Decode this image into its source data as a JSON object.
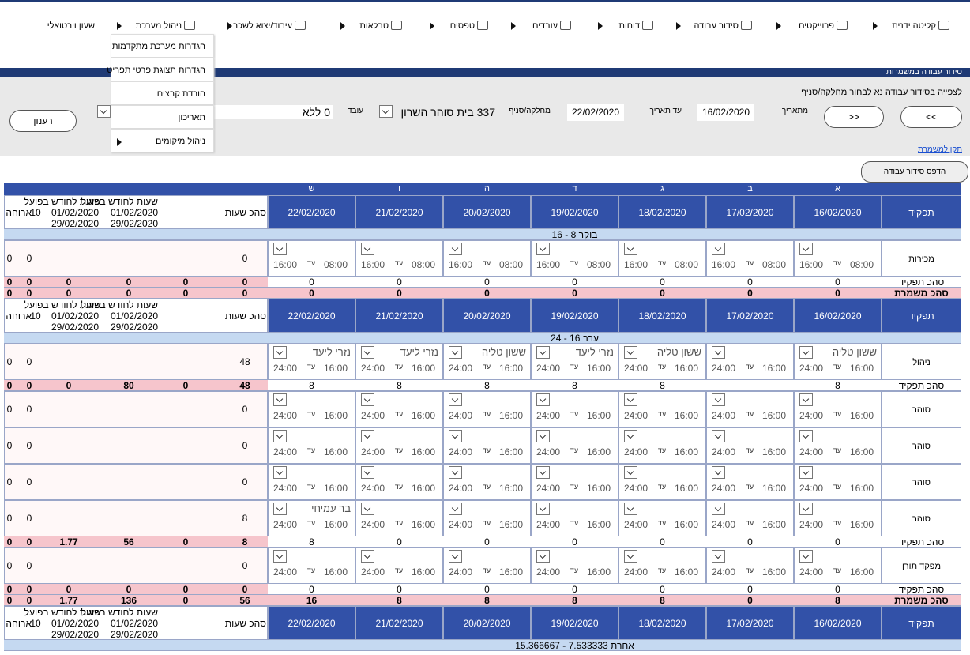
{
  "menu": {
    "items": [
      "קליטה ידנית",
      "פרוייקטים",
      "סידור עבודה",
      "דוחות",
      "עובדים",
      "טפסים",
      "טבלאות",
      "עיבוד/יצוא לשכר",
      "ניהול מערכת",
      "שעון וירטואלי"
    ],
    "dropdown": [
      "הגדרות מערכת מתקדמות",
      "הגדרות תצוגת פרטי תפריט",
      "הורדת קבצים",
      "תאריכון",
      "ניהול מיקומים"
    ]
  },
  "section_title": "סידור עבודה במשמרות",
  "filters": {
    "hint": "לצפייה בסידור עבודה נא לבחור מחלקה/סניף",
    "prev": "<<",
    "next": ">>",
    "from_label": "מתאריך",
    "from": "16/02/2020",
    "to_label": "עד תאריך",
    "to": "22/02/2020",
    "dept_label": "מחלקה/סניף",
    "dept": "337 בית סוהר השרון",
    "employee_label": "עובד",
    "employee": "0 ללא",
    "refresh": "רענון",
    "link": "תקן למשמרת",
    "print": "הדפס סידור עבודה"
  },
  "table": {
    "day_letters": [
      "א",
      "ב",
      "ג",
      "ד",
      "ה",
      "ו",
      "ש"
    ],
    "role_header": "תפקיד",
    "dates": [
      "16/02/2020",
      "17/02/2020",
      "18/02/2020",
      "19/02/2020",
      "20/02/2020",
      "21/02/2020",
      "22/02/2020"
    ],
    "summary_header": {
      "total_hours": "סהכ שעות",
      "monthly": "שעות לחודש בפועל",
      "month_start": "01/02/2020",
      "month_end": "29/02/2020",
      "meal": "ארוחה",
      "meal_value": "10"
    },
    "to_word": "עד",
    "role_total_label": "סהכ תפקיד",
    "shift_total_label": "סהכ משמרת",
    "shifts": [
      {
        "label": "בוקר 8 - 16",
        "from": "08:00",
        "to": "16:00",
        "groups": [
          {
            "rows": [
              {
                "name": "מכירות",
                "employees": [
                  null,
                  null,
                  null,
                  null,
                  null,
                  null,
                  null
                ],
                "hours": 0,
                "extra": [
                  0,
                  0
                ]
              }
            ],
            "total": {
              "days": [
                0,
                0,
                0,
                0,
                0,
                0,
                0
              ],
              "summary": [
                0,
                0,
                0,
                0,
                0,
                0
              ]
            }
          }
        ],
        "total": {
          "days": [
            0,
            0,
            0,
            0,
            0,
            0,
            0
          ],
          "summary": [
            0,
            0,
            0,
            0,
            0,
            0
          ]
        }
      },
      {
        "label": "ערב 16 - 24",
        "from": "16:00",
        "to": "24:00",
        "groups": [
          {
            "rows": [
              {
                "name": "ניהול",
                "employees": [
                  "ששון טליה",
                  null,
                  "ששון טליה",
                  "נזרי ליעד",
                  "ששון טליה",
                  "נזרי ליעד",
                  "נזרי ליעד"
                ],
                "hours": 48,
                "extra": [
                  0,
                  0
                ]
              }
            ],
            "total": {
              "days": [
                8,
                null,
                8,
                8,
                8,
                8,
                8
              ],
              "summary": [
                48,
                0,
                80,
                0,
                0,
                0
              ]
            }
          },
          {
            "rows": [
              {
                "name": "סוהר",
                "employees": [
                  null,
                  null,
                  null,
                  null,
                  null,
                  null,
                  null
                ],
                "hours": 0,
                "extra": [
                  0,
                  0
                ]
              },
              {
                "name": "סוהר",
                "employees": [
                  null,
                  null,
                  null,
                  null,
                  null,
                  null,
                  null
                ],
                "hours": 0,
                "extra": [
                  0,
                  0
                ]
              },
              {
                "name": "סוהר",
                "employees": [
                  null,
                  null,
                  null,
                  null,
                  null,
                  null,
                  null
                ],
                "hours": 0,
                "extra": [
                  0,
                  0
                ]
              },
              {
                "name": "סוהר",
                "employees": [
                  null,
                  null,
                  null,
                  null,
                  null,
                  null,
                  "בר עמיחי"
                ],
                "hours": 8,
                "extra": [
                  0,
                  0
                ]
              }
            ],
            "total": {
              "days": [
                0,
                0,
                0,
                0,
                0,
                0,
                8
              ],
              "summary": [
                8,
                0,
                56,
                1.77,
                0,
                0
              ]
            }
          },
          {
            "rows": [
              {
                "name": "מפקד תורן",
                "employees": [
                  null,
                  null,
                  null,
                  null,
                  null,
                  null,
                  null
                ],
                "hours": 0,
                "extra": [
                  0,
                  0
                ]
              }
            ],
            "total": {
              "days": [
                0,
                0,
                0,
                0,
                0,
                0,
                0
              ],
              "summary": [
                0,
                0,
                0,
                0,
                0,
                0
              ]
            }
          }
        ],
        "total": {
          "days": [
            8,
            0,
            8,
            8,
            8,
            8,
            16
          ],
          "summary": [
            56,
            0,
            136,
            1.77,
            0,
            0
          ]
        }
      },
      {
        "label": "אחרת 7.533333 - 15.366667",
        "groups": []
      }
    ]
  }
}
